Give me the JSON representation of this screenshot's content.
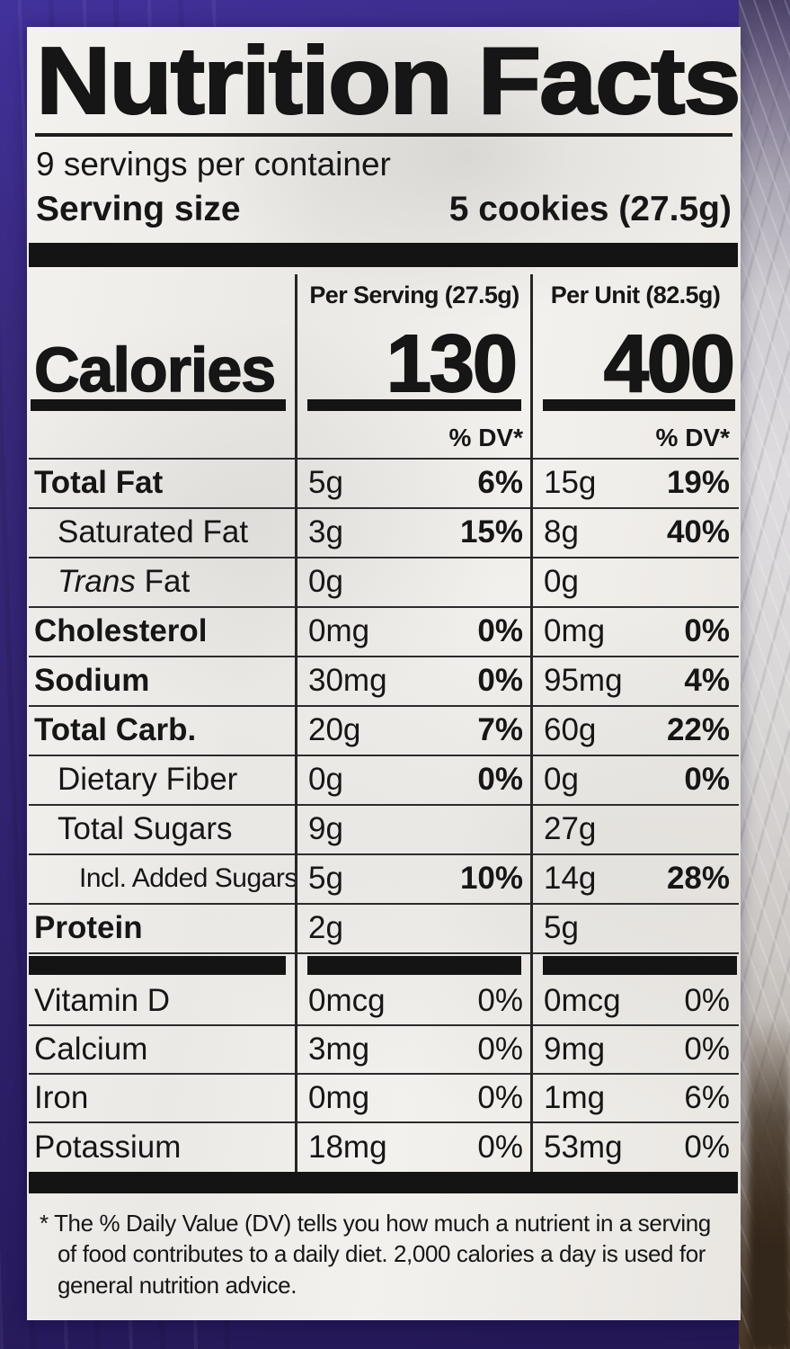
{
  "label": {
    "title": "Nutrition Facts",
    "servings_per_container": "9 servings per container",
    "serving_size_label": "Serving size",
    "serving_size_value": "5 cookies (27.5g)",
    "columns": {
      "per_serving": "Per Serving (27.5g)",
      "per_unit": "Per Unit (82.5g)",
      "dv_header": "% DV*"
    },
    "calories": {
      "label": "Calories",
      "per_serving": "130",
      "per_unit": "400"
    },
    "nutrients": [
      {
        "name": "Total Fat",
        "bold": true,
        "indent": 0,
        "ps": "5g",
        "ps_dv": "6%",
        "pu": "15g",
        "pu_dv": "19%",
        "dv_bold": true
      },
      {
        "name": "Saturated Fat",
        "bold": false,
        "indent": 1,
        "ps": "3g",
        "ps_dv": "15%",
        "pu": "8g",
        "pu_dv": "40%",
        "dv_bold": true
      },
      {
        "name": "Trans Fat",
        "name_italic_part": "Trans",
        "name_regular_part": " Fat",
        "bold": false,
        "indent": 1,
        "ps": "0g",
        "ps_dv": "",
        "pu": "0g",
        "pu_dv": "",
        "dv_bold": false
      },
      {
        "name": "Cholesterol",
        "bold": true,
        "indent": 0,
        "ps": "0mg",
        "ps_dv": "0%",
        "pu": "0mg",
        "pu_dv": "0%",
        "dv_bold": true
      },
      {
        "name": "Sodium",
        "bold": true,
        "indent": 0,
        "ps": "30mg",
        "ps_dv": "0%",
        "pu": "95mg",
        "pu_dv": "4%",
        "dv_bold": true
      },
      {
        "name": "Total Carb.",
        "bold": true,
        "indent": 0,
        "ps": "20g",
        "ps_dv": "7%",
        "pu": "60g",
        "pu_dv": "22%",
        "dv_bold": true
      },
      {
        "name": "Dietary Fiber",
        "bold": false,
        "indent": 1,
        "ps": "0g",
        "ps_dv": "0%",
        "pu": "0g",
        "pu_dv": "0%",
        "dv_bold": true
      },
      {
        "name": "Total Sugars",
        "bold": false,
        "indent": 1,
        "ps": "9g",
        "ps_dv": "",
        "pu": "27g",
        "pu_dv": "",
        "dv_bold": false
      },
      {
        "name": "Incl. Added Sugars",
        "bold": false,
        "indent": 2,
        "ps": "5g",
        "ps_dv": "10%",
        "pu": "14g",
        "pu_dv": "28%",
        "dv_bold": true
      },
      {
        "name": "Protein",
        "bold": true,
        "indent": 0,
        "ps": "2g",
        "ps_dv": "",
        "pu": "5g",
        "pu_dv": "",
        "dv_bold": false
      }
    ],
    "vitamins": [
      {
        "name": "Vitamin D",
        "bold": false,
        "indent": 0,
        "ps": "0mcg",
        "ps_dv": "0%",
        "pu": "0mcg",
        "pu_dv": "0%",
        "dv_bold": false
      },
      {
        "name": "Calcium",
        "bold": false,
        "indent": 0,
        "ps": "3mg",
        "ps_dv": "0%",
        "pu": "9mg",
        "pu_dv": "0%",
        "dv_bold": false
      },
      {
        "name": "Iron",
        "bold": false,
        "indent": 0,
        "ps": "0mg",
        "ps_dv": "0%",
        "pu": "1mg",
        "pu_dv": "6%",
        "dv_bold": false
      },
      {
        "name": "Potassium",
        "bold": false,
        "indent": 0,
        "ps": "18mg",
        "ps_dv": "0%",
        "pu": "53mg",
        "pu_dv": "0%",
        "dv_bold": false
      }
    ],
    "footnote_marker": "*",
    "footnote": "The % Daily Value (DV) tells you how much a nutrient in a serving of food contributes to a daily diet. 2,000 calories a day is used for general nutrition advice."
  },
  "colors": {
    "package_purple": "#32236f",
    "package_purple_dark": "#231755",
    "label_paper": "#efede9",
    "ink": "#161616",
    "wrap_plastic_gray": "#d6d3d6"
  }
}
